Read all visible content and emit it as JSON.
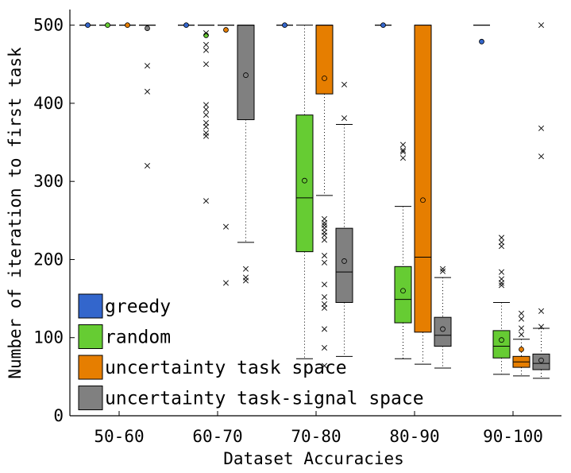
{
  "chart_data": {
    "type": "box",
    "title": "",
    "xlabel": "Dataset Accuracies",
    "ylabel": "Number of iteration to first task",
    "ylim": [
      0,
      520
    ],
    "yticks": [
      0,
      100,
      200,
      300,
      400,
      500
    ],
    "categories": [
      "50-60",
      "60-70",
      "70-80",
      "80-90",
      "90-100"
    ],
    "legend_position": "bottom-left",
    "series": [
      {
        "name": "greedy",
        "color": "#3366cc",
        "boxes": [
          {
            "category": "50-60",
            "q1": 500,
            "median": 500,
            "q3": 500,
            "whisker_low": 500,
            "whisker_high": 500,
            "mean": 500,
            "outliers": []
          },
          {
            "category": "60-70",
            "q1": 500,
            "median": 500,
            "q3": 500,
            "whisker_low": 500,
            "whisker_high": 500,
            "mean": 500,
            "outliers": []
          },
          {
            "category": "70-80",
            "q1": 500,
            "median": 500,
            "q3": 500,
            "whisker_low": 500,
            "whisker_high": 500,
            "mean": 500,
            "outliers": []
          },
          {
            "category": "80-90",
            "q1": 500,
            "median": 500,
            "q3": 500,
            "whisker_low": 500,
            "whisker_high": 500,
            "mean": 500,
            "outliers": []
          },
          {
            "category": "90-100",
            "q1": 500,
            "median": 500,
            "q3": 500,
            "whisker_low": 500,
            "whisker_high": 500,
            "mean": 479,
            "outliers": []
          }
        ]
      },
      {
        "name": "random",
        "color": "#66cc33",
        "boxes": [
          {
            "category": "50-60",
            "q1": 500,
            "median": 500,
            "q3": 500,
            "whisker_low": 500,
            "whisker_high": 500,
            "mean": 500,
            "outliers": []
          },
          {
            "category": "60-70",
            "q1": 500,
            "median": 500,
            "q3": 500,
            "whisker_low": 500,
            "whisker_high": 500,
            "mean": 487,
            "outliers": [
              490,
              475,
              468,
              450,
              398,
              392,
              385,
              375,
              370,
              362,
              358,
              275
            ]
          },
          {
            "category": "70-80",
            "q1": 210,
            "median": 279,
            "q3": 385,
            "whisker_low": 73,
            "whisker_high": 500,
            "mean": 301,
            "outliers": []
          },
          {
            "category": "80-90",
            "q1": 119,
            "median": 149,
            "q3": 191,
            "whisker_low": 73,
            "whisker_high": 268,
            "mean": 160,
            "outliers": [
              347,
              340,
              338,
              330
            ]
          },
          {
            "category": "90-100",
            "q1": 74,
            "median": 89,
            "q3": 109,
            "whisker_low": 53,
            "whisker_high": 145,
            "mean": 97,
            "outliers": [
              228,
              222,
              217,
              184,
              175,
              170,
              167
            ]
          }
        ]
      },
      {
        "name": "uncertainty task space",
        "color": "#e67e00",
        "boxes": [
          {
            "category": "50-60",
            "q1": 500,
            "median": 500,
            "q3": 500,
            "whisker_low": 500,
            "whisker_high": 500,
            "mean": 500,
            "outliers": []
          },
          {
            "category": "60-70",
            "q1": 500,
            "median": 500,
            "q3": 500,
            "whisker_low": 500,
            "whisker_high": 500,
            "mean": 494,
            "outliers": [
              242,
              170
            ]
          },
          {
            "category": "70-80",
            "q1": 412,
            "median": 500,
            "q3": 500,
            "whisker_low": 282,
            "whisker_high": 500,
            "mean": 432,
            "outliers": [
              252,
              247,
              244,
              240,
              235,
              231,
              225,
              205,
              196,
              168,
              152,
              143,
              138,
              111,
              87,
              64
            ]
          },
          {
            "category": "80-90",
            "q1": 107,
            "median": 203,
            "q3": 500,
            "whisker_low": 66,
            "whisker_high": 500,
            "mean": 276,
            "outliers": []
          },
          {
            "category": "90-100",
            "q1": 62,
            "median": 69,
            "q3": 76,
            "whisker_low": 51,
            "whisker_high": 98,
            "mean": 85,
            "outliers": [
              131,
              124,
              112,
              104
            ]
          }
        ]
      },
      {
        "name": "uncertainty task-signal space",
        "color": "#808080",
        "boxes": [
          {
            "category": "50-60",
            "q1": 500,
            "median": 500,
            "q3": 500,
            "whisker_low": 500,
            "whisker_high": 500,
            "mean": 496,
            "outliers": [
              448,
              415,
              320
            ]
          },
          {
            "category": "60-70",
            "q1": 379,
            "median": 500,
            "q3": 500,
            "whisker_low": 222,
            "whisker_high": 500,
            "mean": 436,
            "outliers": [
              188,
              177,
              173
            ]
          },
          {
            "category": "70-80",
            "q1": 145,
            "median": 184,
            "q3": 240,
            "whisker_low": 76,
            "whisker_high": 373,
            "mean": 198,
            "outliers": [
              424,
              381
            ]
          },
          {
            "category": "80-90",
            "q1": 89,
            "median": 103,
            "q3": 126,
            "whisker_low": 61,
            "whisker_high": 177,
            "mean": 111,
            "outliers": [
              188,
              185
            ]
          },
          {
            "category": "90-100",
            "q1": 59,
            "median": 67,
            "q3": 79,
            "whisker_low": 48,
            "whisker_high": 112,
            "mean": 71,
            "outliers": [
              500,
              368,
              332,
              134,
              114
            ]
          }
        ]
      }
    ]
  }
}
